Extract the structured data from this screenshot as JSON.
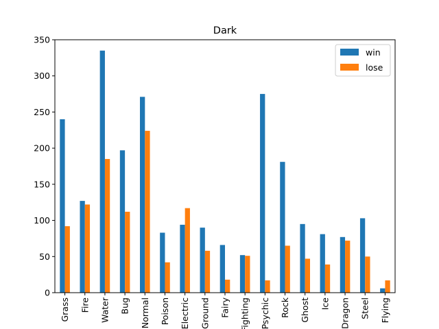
{
  "chart_data": {
    "type": "bar",
    "title": "Dark",
    "xlabel": "",
    "ylabel": "",
    "categories": [
      "Grass",
      "Fire",
      "Water",
      "Bug",
      "Normal",
      "Poison",
      "Electric",
      "Ground",
      "Fairy",
      "Fighting",
      "Psychic",
      "Rock",
      "Ghost",
      "Ice",
      "Dragon",
      "Steel",
      "Flying"
    ],
    "series": [
      {
        "name": "win",
        "color": "#1f77b4",
        "values": [
          240,
          127,
          335,
          197,
          271,
          83,
          94,
          90,
          66,
          52,
          275,
          181,
          95,
          81,
          77,
          103,
          6
        ]
      },
      {
        "name": "lose",
        "color": "#ff7f0e",
        "values": [
          92,
          122,
          185,
          112,
          224,
          42,
          117,
          58,
          18,
          51,
          17,
          65,
          47,
          39,
          72,
          50,
          17
        ]
      }
    ],
    "ylim": [
      0,
      350
    ],
    "yticks": [
      0,
      50,
      100,
      150,
      200,
      250,
      300,
      350
    ],
    "grid": false,
    "legend_position": "top-right"
  }
}
